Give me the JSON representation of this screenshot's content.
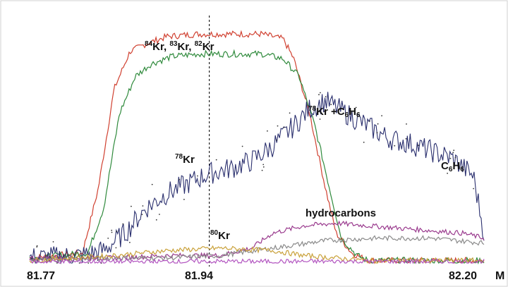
{
  "chart_data": {
    "type": "line",
    "xlabel": "M",
    "xlim": [
      81.77,
      82.2
    ],
    "ylim": [
      0,
      100
    ],
    "grid": false,
    "x_tick_labels": [
      "81.77",
      "81.94",
      "82.20"
    ],
    "reference_line": {
      "x": 81.94,
      "style": "dashed"
    },
    "annotations": {
      "kr_84_83_82": {
        "sup1": "84",
        "t1": "Kr, ",
        "sup2": "83",
        "t2": "Kr, ",
        "sup3": "82",
        "t3": "Kr"
      },
      "kr78_c6h6": {
        "sup1": "78",
        "t1": "Kr +C",
        "sub1": "6",
        "t2": "H",
        "sub2": "6"
      },
      "kr78": {
        "sup1": "78",
        "t1": "Kr"
      },
      "c6h6": {
        "t1": "C",
        "sub1": "6",
        "t2": "H",
        "sub2": "6"
      },
      "hydrocarbons": "hydrocarbons",
      "kr80": {
        "sup1": "80",
        "t1": "Kr"
      }
    },
    "series": [
      {
        "color": "#d04030",
        "x": [
          81.77,
          81.82,
          81.835,
          81.85,
          81.865,
          81.88,
          81.9,
          81.93,
          81.96,
          81.99,
          82.01,
          82.02,
          82.035,
          82.05,
          82.06,
          82.075,
          82.09,
          82.2
        ],
        "values": [
          2,
          4,
          30,
          70,
          85,
          88,
          91,
          92,
          92,
          92,
          90,
          82,
          60,
          30,
          12,
          4,
          1,
          1
        ]
      },
      {
        "color": "#2f8a3c",
        "x": [
          81.77,
          81.825,
          81.84,
          81.855,
          81.87,
          81.885,
          81.905,
          81.93,
          81.96,
          81.99,
          82.01,
          82.025,
          82.04,
          82.055,
          82.065,
          82.08,
          82.09,
          82.2
        ],
        "values": [
          2,
          4,
          22,
          60,
          75,
          80,
          83,
          84,
          84,
          84,
          82,
          75,
          55,
          28,
          10,
          3,
          1,
          1
        ]
      },
      {
        "color": "#2a2f6e",
        "x": [
          81.77,
          81.82,
          81.84,
          81.86,
          81.88,
          81.9,
          81.92,
          81.94,
          81.96,
          81.98,
          82.0,
          82.02,
          82.035,
          82.05,
          82.07,
          82.09,
          82.11,
          82.13,
          82.15,
          82.17,
          82.19,
          82.2
        ],
        "values": [
          2,
          3,
          5,
          12,
          22,
          28,
          32,
          36,
          38,
          41,
          47,
          55,
          62,
          65,
          60,
          55,
          50,
          48,
          45,
          42,
          35,
          12
        ]
      },
      {
        "color": "#9a3b8e",
        "x": [
          81.77,
          81.85,
          81.9,
          81.95,
          81.98,
          82.0,
          82.03,
          82.06,
          82.09,
          82.12,
          82.15,
          82.18,
          82.2
        ],
        "values": [
          2,
          2,
          3,
          3,
          6,
          12,
          15,
          16,
          15,
          14,
          13,
          12,
          10
        ]
      },
      {
        "color": "#8a8a8a",
        "x": [
          81.77,
          81.85,
          81.9,
          81.95,
          82.0,
          82.05,
          82.1,
          82.15,
          82.2
        ],
        "values": [
          1,
          2,
          2,
          3,
          6,
          9,
          10,
          10,
          8
        ]
      },
      {
        "color": "#c9a13a",
        "x": [
          81.77,
          81.85,
          81.9,
          81.95,
          82.0,
          82.03,
          82.06,
          82.09,
          82.2
        ],
        "values": [
          1,
          3,
          5,
          6,
          5,
          3,
          2,
          1,
          1
        ]
      },
      {
        "color": "#b255c0",
        "x": [
          81.77,
          81.85,
          81.95,
          82.05,
          82.2
        ],
        "values": [
          0.5,
          0.5,
          0.6,
          0.6,
          0.6
        ]
      }
    ]
  }
}
